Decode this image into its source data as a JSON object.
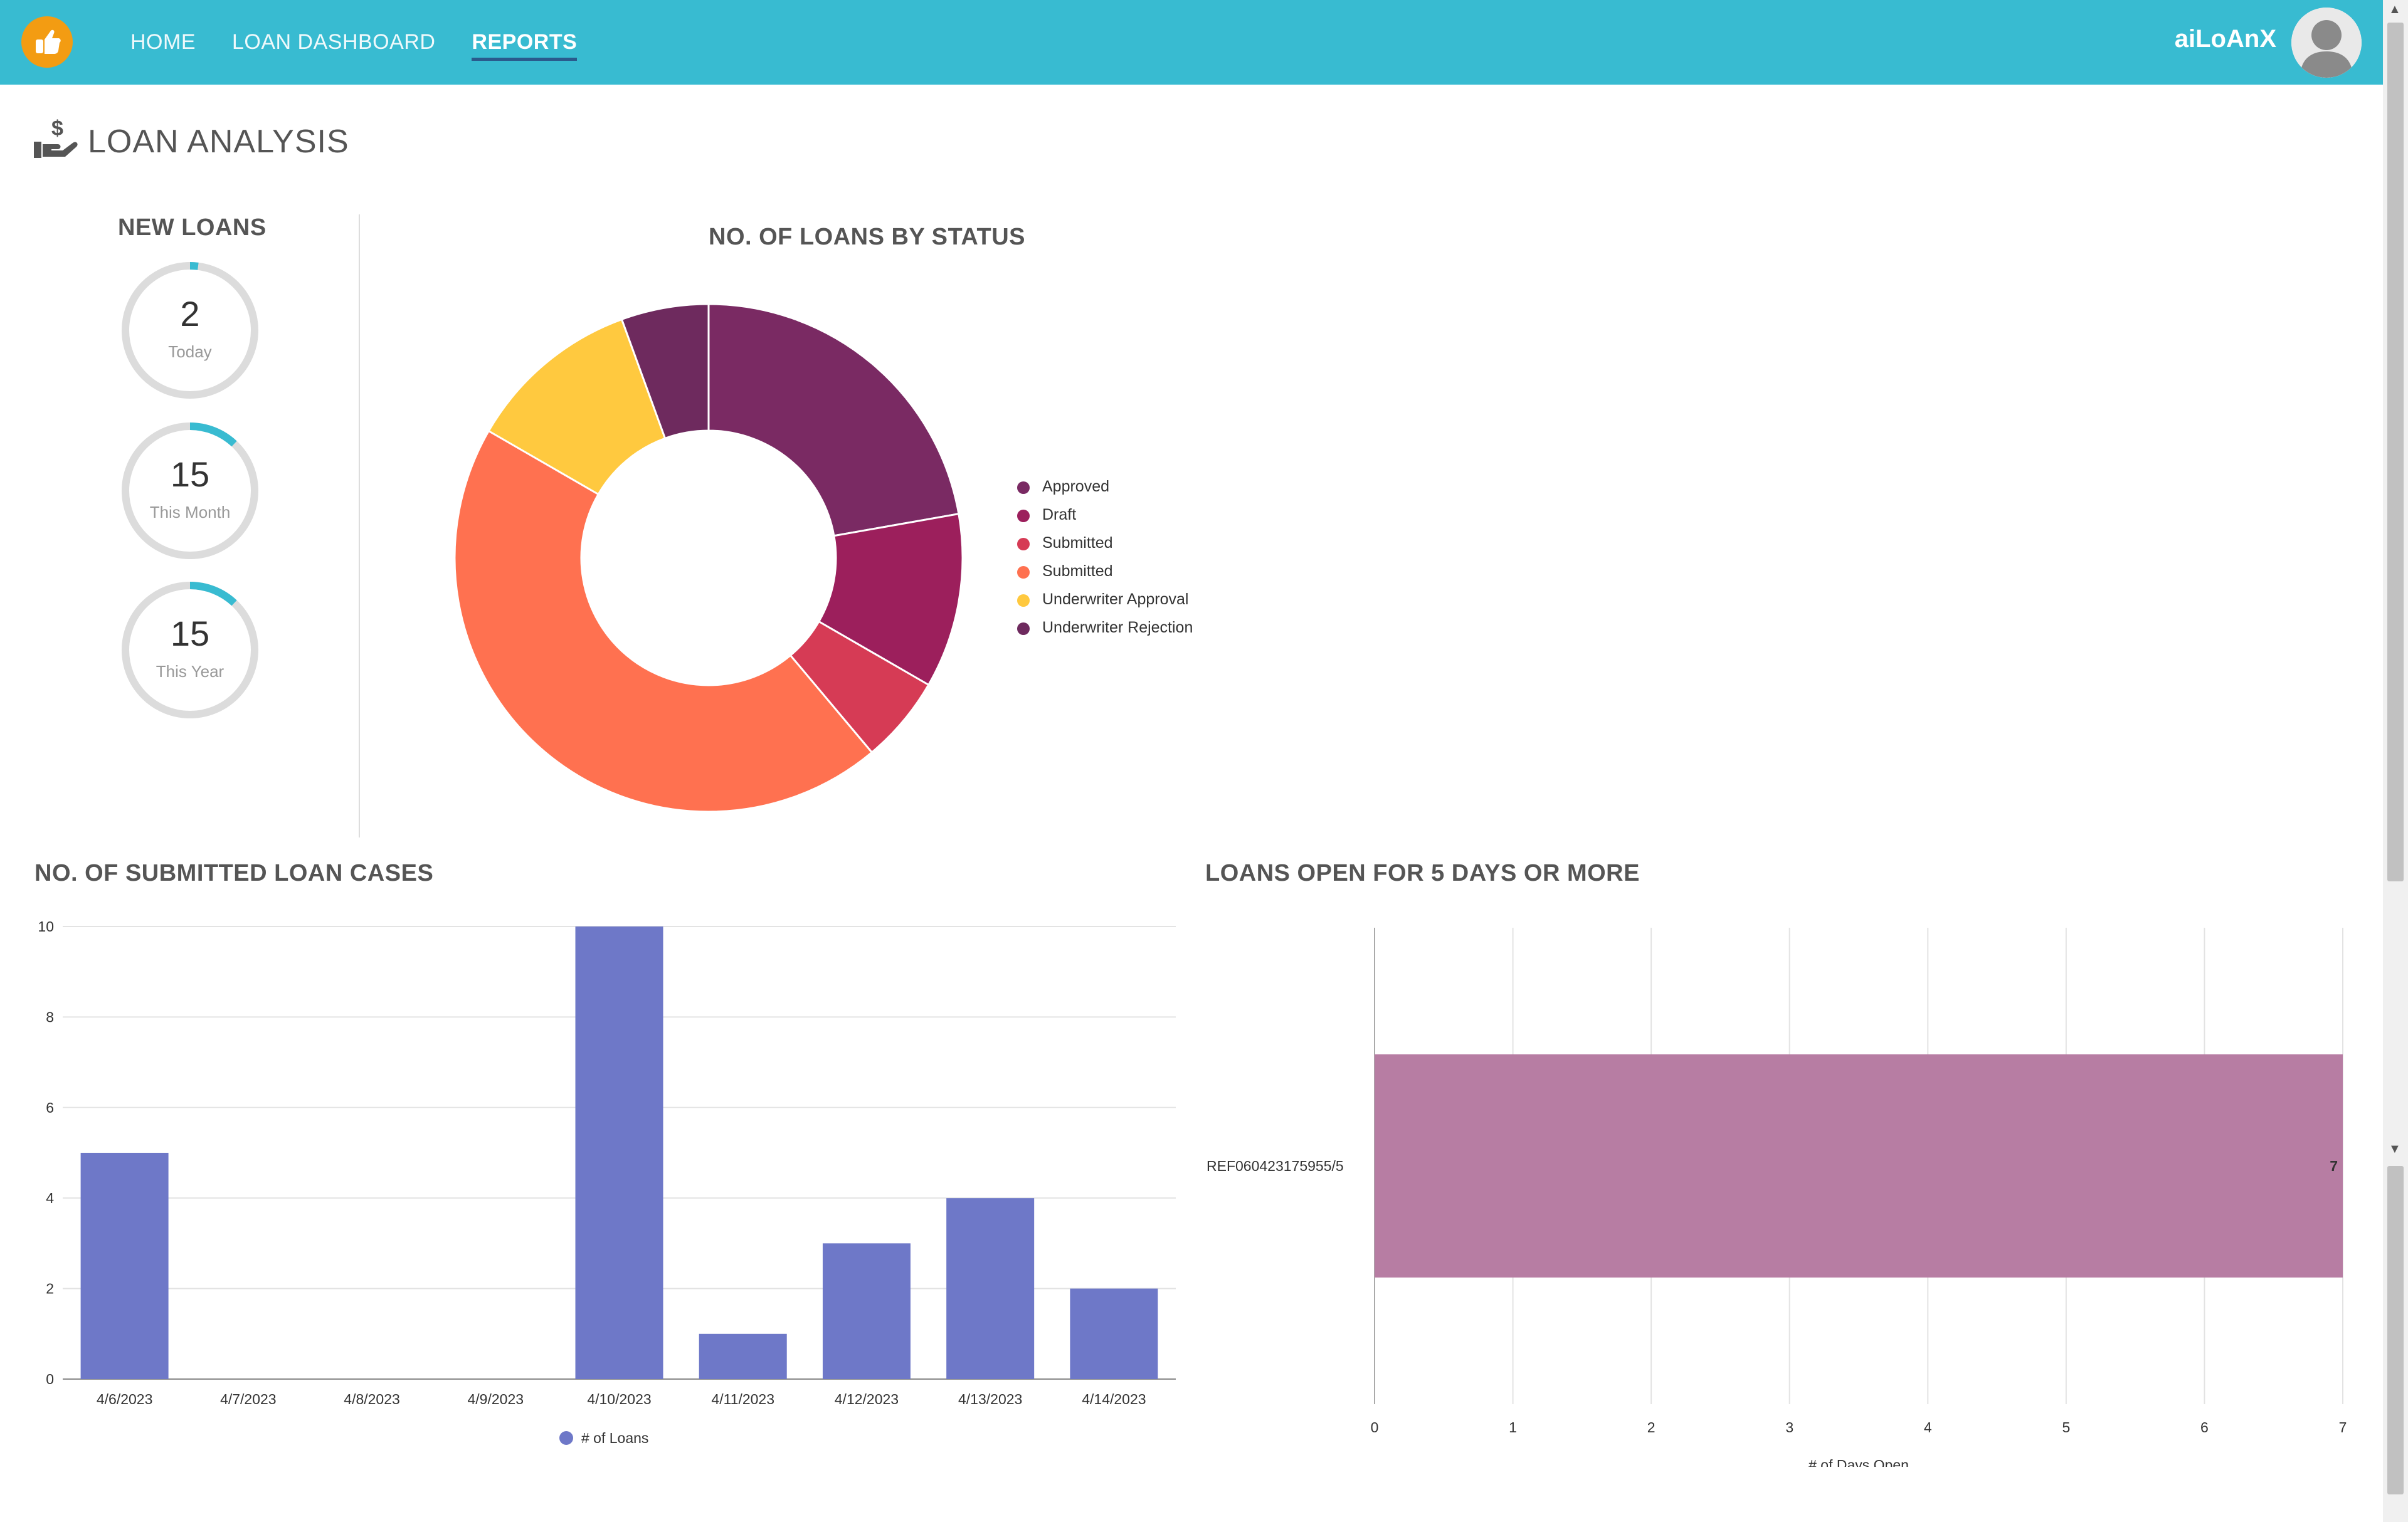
{
  "app": {
    "user_name": "aiLoAnX",
    "nav": [
      "HOME",
      "LOAN DASHBOARD",
      "REPORTS"
    ],
    "active_nav": "REPORTS",
    "icons": [
      "logo-hand-icon",
      "user-avatar-icon",
      "loan-hand-dollar-icon"
    ],
    "accent_color": "#38bbd1"
  },
  "page": {
    "title": "LOAN ANALYSIS"
  },
  "new_loans": {
    "title": "NEW LOANS",
    "ring_color": "#38bbd1",
    "items": [
      {
        "value": "2",
        "label": "Today",
        "fraction": 0.02
      },
      {
        "value": "15",
        "label": "This Month",
        "fraction": 0.12
      },
      {
        "value": "15",
        "label": "This Year",
        "fraction": 0.12
      }
    ]
  },
  "chart_data": [
    {
      "type": "pie",
      "variant": "donut",
      "title": "NO. OF LOANS BY STATUS",
      "labels": [
        "Approved",
        "Draft",
        "Submitted",
        "Submitted",
        "Underwriter Approval",
        "Underwriter Rejection"
      ],
      "values": [
        8,
        4,
        2,
        16,
        4,
        2
      ],
      "colors": [
        "#7a2a63",
        "#9c1f5c",
        "#d63b55",
        "#ff7150",
        "#ffc93f",
        "#6e2a5e"
      ],
      "legend": "right"
    },
    {
      "type": "bar",
      "title": "NO. OF SUBMITTED LOAN CASES",
      "categories": [
        "4/6/2023",
        "4/7/2023",
        "4/8/2023",
        "4/9/2023",
        "4/10/2023",
        "4/11/2023",
        "4/12/2023",
        "4/13/2023",
        "4/14/2023"
      ],
      "series": [
        {
          "name": "# of Loans",
          "values": [
            5,
            0,
            0,
            0,
            10,
            1,
            3,
            4,
            2
          ],
          "color": "#6e78c8"
        }
      ],
      "ylim": [
        0,
        10
      ],
      "yticks": [
        0,
        2,
        4,
        6,
        8,
        10
      ],
      "grid": true,
      "legend": "bottom"
    },
    {
      "type": "bar",
      "orientation": "horizontal",
      "title": "LOANS OPEN FOR 5 DAYS OR MORE",
      "categories": [
        "REF060423175955/5"
      ],
      "values": [
        7
      ],
      "data_labels": [
        "7"
      ],
      "color": "#b77da3",
      "xlabel": "# of Days Open",
      "xlim": [
        0,
        7
      ],
      "xticks": [
        0,
        1,
        2,
        3,
        4,
        5,
        6,
        7
      ],
      "grid": true
    }
  ]
}
